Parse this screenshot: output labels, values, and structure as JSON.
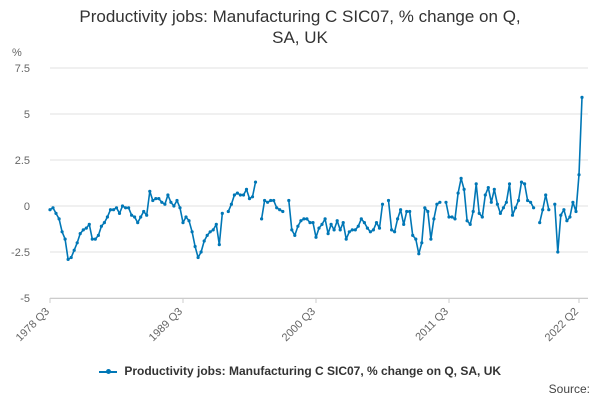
{
  "chart_data": {
    "type": "line",
    "title_line1": "Productivity jobs: Manufacturing C SIC07, % change on Q,",
    "title_line2": "SA, UK",
    "ylabel": "%",
    "ylim": [
      -5,
      7.5
    ],
    "yticks": [
      "7.5",
      "5",
      "2.5",
      "0",
      "-2.5",
      "-5"
    ],
    "ytick_values": [
      7.5,
      5,
      2.5,
      0,
      -2.5,
      -5
    ],
    "xticks": [
      "1978 Q3",
      "1989 Q3",
      "2000 Q3",
      "2011 Q3",
      "2022 Q2"
    ],
    "xtick_indices": [
      0,
      44,
      88,
      132,
      175
    ],
    "grid": true,
    "legend_position": "bottom",
    "series": [
      {
        "name": "Productivity jobs: Manufacturing C SIC07, % change on Q, SA, UK",
        "color": "#0077b6",
        "values": [
          -0.2,
          -0.1,
          -0.4,
          -0.7,
          -1.4,
          -1.8,
          -2.9,
          -2.8,
          -2.4,
          -2.0,
          -1.5,
          -1.3,
          -1.2,
          -1.0,
          -1.8,
          -1.8,
          -1.6,
          -1.1,
          -0.9,
          -0.6,
          -0.2,
          -0.2,
          -0.1,
          -0.4,
          0.0,
          -0.1,
          -0.1,
          -0.5,
          -0.6,
          -0.9,
          -0.6,
          -0.3,
          -0.5,
          0.8,
          0.3,
          0.4,
          0.4,
          0.2,
          0.1,
          0.6,
          0.2,
          0.0,
          0.3,
          -0.1,
          -0.9,
          -0.6,
          -0.8,
          -1.4,
          -2.2,
          -2.8,
          -2.5,
          -1.9,
          -1.6,
          -1.4,
          -1.3,
          -1.0,
          -2.1,
          -0.4,
          null,
          -0.3,
          0.1,
          0.6,
          0.7,
          0.6,
          0.6,
          0.9,
          0.4,
          0.5,
          1.3,
          null,
          -0.7,
          0.3,
          0.2,
          0.3,
          0.3,
          -0.1,
          -0.2,
          -0.3,
          null,
          0.3,
          -1.3,
          -1.6,
          -1.1,
          -0.8,
          -0.7,
          -0.7,
          -0.9,
          -0.9,
          -1.7,
          -1.2,
          -1.0,
          -0.7,
          -1.5,
          -1.0,
          -1.3,
          -0.8,
          -1.3,
          -0.9,
          -1.8,
          -1.4,
          -1.3,
          -1.3,
          -1.1,
          -0.7,
          -0.9,
          -1.2,
          -1.4,
          -1.3,
          -0.9,
          -1.2,
          0.1,
          null,
          0.3,
          -1.3,
          -1.4,
          -0.7,
          -0.2,
          -1.0,
          -0.3,
          -0.3,
          -1.6,
          -1.8,
          -2.6,
          -2.0,
          -0.1,
          -0.3,
          -1.8,
          -0.7,
          0.1,
          0.2,
          null,
          0.2,
          -0.6,
          -0.6,
          -0.7,
          0.7,
          1.5,
          0.9,
          -0.8,
          -1.0,
          -0.3,
          1.2,
          -0.4,
          -0.6,
          0.6,
          1.0,
          0.2,
          0.9,
          0.1,
          -0.4,
          -0.1,
          0.2,
          1.2,
          -0.5,
          -0.1,
          0.3,
          1.3,
          1.2,
          0.3,
          0.2,
          -0.1,
          null,
          -0.9,
          -0.2,
          0.6,
          -0.2,
          null,
          0.1,
          -2.5,
          -0.5,
          -0.2,
          -0.8,
          -0.6,
          0.2,
          -0.3,
          1.7,
          5.9
        ]
      }
    ]
  },
  "legend": {
    "label": "Productivity jobs: Manufacturing C SIC07, % change on Q, SA, UK"
  },
  "footer": {
    "source": "Source:"
  }
}
